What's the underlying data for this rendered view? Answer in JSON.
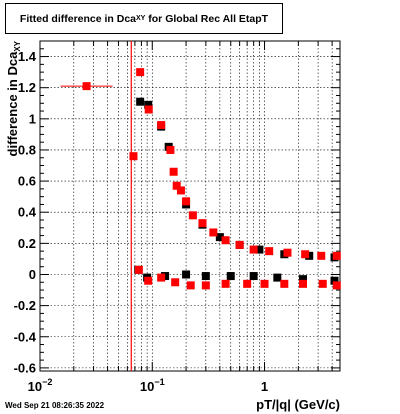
{
  "title": {
    "main": "Fitted difference in Dca",
    "sub": "XY",
    "rest": " for Global Rec All EtapT"
  },
  "footer": "Wed Sep 21 08:26:35 2022",
  "chart_data": {
    "type": "scatter",
    "title": "Fitted difference in Dca_XY for Global Rec All EtapT",
    "xlabel": "pT/|q| (GeV/c)",
    "ylabel": "difference in Dca_XY",
    "xscale": "log",
    "xlim": [
      0.01,
      4.7
    ],
    "ylim": [
      -0.62,
      1.5
    ],
    "grid": true,
    "xticks": [
      {
        "v": 0.01,
        "base": "10",
        "exp": "−2"
      },
      {
        "v": 0.1,
        "base": "10",
        "exp": "−1"
      },
      {
        "v": 1,
        "base": "1",
        "exp": ""
      }
    ],
    "yticks": [
      "-0.6",
      "-0.4",
      "-0.2",
      "0",
      "0.2",
      "0.4",
      "0.6",
      "0.8",
      "1",
      "1.2",
      "1.4"
    ],
    "vline": {
      "x": 0.065,
      "color": "#ff0000"
    },
    "series": [
      {
        "color": "#000000",
        "marker": "square",
        "points": [
          [
            0.078,
            1.11
          ],
          [
            0.092,
            1.09
          ],
          [
            0.12,
            0.95
          ],
          [
            0.14,
            0.82
          ],
          [
            0.2,
            0.45
          ],
          [
            0.28,
            0.32
          ],
          [
            0.4,
            0.24
          ],
          [
            0.6,
            0.19
          ],
          [
            0.9,
            0.16
          ],
          [
            1.5,
            0.13
          ],
          [
            2.5,
            0.12
          ],
          [
            4.2,
            0.11
          ],
          [
            0.075,
            0.03
          ],
          [
            0.09,
            -0.02
          ],
          [
            0.13,
            -0.01
          ],
          [
            0.2,
            0.0
          ],
          [
            0.3,
            -0.01
          ],
          [
            0.5,
            -0.01
          ],
          [
            0.8,
            -0.01
          ],
          [
            1.3,
            -0.02
          ],
          [
            2.2,
            -0.03
          ],
          [
            4.2,
            -0.04
          ]
        ]
      },
      {
        "color": "#ff0000",
        "marker": "square",
        "points": [
          [
            0.026,
            1.21
          ],
          [
            0.068,
            0.76
          ],
          [
            0.078,
            1.3
          ],
          [
            0.093,
            1.06
          ],
          [
            0.12,
            0.96
          ],
          [
            0.145,
            0.8
          ],
          [
            0.155,
            0.66
          ],
          [
            0.165,
            0.57
          ],
          [
            0.18,
            0.54
          ],
          [
            0.2,
            0.47
          ],
          [
            0.23,
            0.38
          ],
          [
            0.28,
            0.33
          ],
          [
            0.35,
            0.27
          ],
          [
            0.45,
            0.22
          ],
          [
            0.6,
            0.19
          ],
          [
            0.8,
            0.16
          ],
          [
            1.1,
            0.15
          ],
          [
            1.6,
            0.14
          ],
          [
            2.3,
            0.13
          ],
          [
            3.2,
            0.12
          ],
          [
            4.4,
            0.12
          ],
          [
            0.076,
            0.03
          ],
          [
            0.092,
            -0.04
          ],
          [
            0.12,
            -0.02
          ],
          [
            0.16,
            -0.05
          ],
          [
            0.22,
            -0.07
          ],
          [
            0.3,
            -0.07
          ],
          [
            0.45,
            -0.06
          ],
          [
            0.7,
            -0.06
          ],
          [
            1.0,
            -0.06
          ],
          [
            1.5,
            -0.06
          ],
          [
            2.2,
            -0.06
          ],
          [
            3.3,
            -0.06
          ],
          [
            4.4,
            -0.07
          ]
        ]
      }
    ]
  }
}
